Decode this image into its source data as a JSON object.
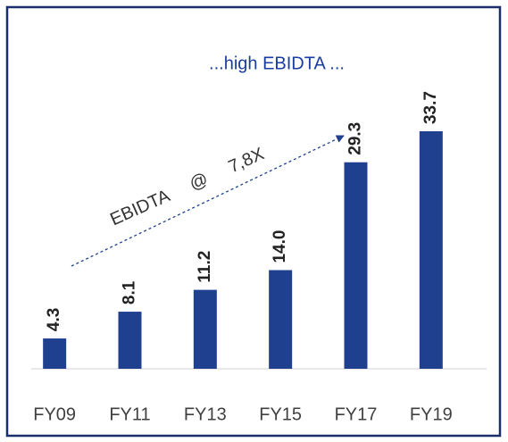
{
  "chart_data": {
    "type": "bar",
    "title": "...high EBIDTA ...",
    "categories": [
      "FY09",
      "FY11",
      "FY13",
      "FY15",
      "FY17",
      "FY19"
    ],
    "values": [
      4.3,
      8.1,
      11.2,
      14.0,
      29.3,
      33.7
    ],
    "value_labels": [
      "4.3",
      "8.1",
      "11.2",
      "14.0",
      "29.3",
      "33.7"
    ],
    "color": "#1f3f8f",
    "annotation": "EBIDTA @ 7,8X"
  }
}
